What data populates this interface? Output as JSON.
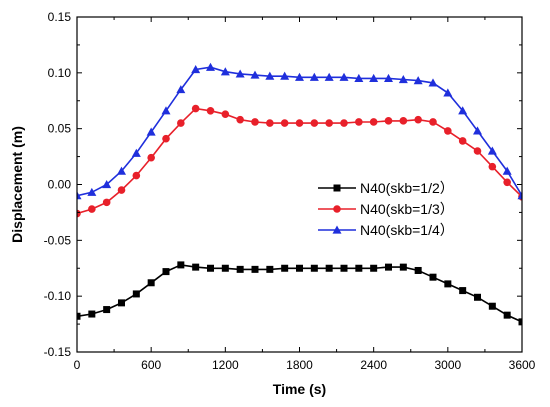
{
  "chart_data": {
    "type": "line",
    "title": "",
    "xlabel": "Time (s)",
    "ylabel": "Displacement (m)",
    "xlim": [
      0,
      3600
    ],
    "ylim": [
      -0.15,
      0.15
    ],
    "xticks": [
      0,
      600,
      1200,
      1800,
      2400,
      3000,
      3600
    ],
    "yticks": [
      -0.15,
      -0.1,
      -0.05,
      0.0,
      0.05,
      0.1,
      0.15
    ],
    "xtick_labels": [
      "0",
      "600",
      "1200",
      "1800",
      "2400",
      "3000",
      "3600"
    ],
    "ytick_labels": [
      "-0.15",
      "-0.10",
      "-0.05",
      "0.00",
      "0.05",
      "0.10",
      "0.15"
    ],
    "grid": false,
    "legend_position": "right-middle",
    "series": [
      {
        "name": "N40(skb=1/2）",
        "color": "#000000",
        "marker": "square",
        "x": [
          0,
          120,
          240,
          360,
          480,
          600,
          720,
          840,
          960,
          1080,
          1200,
          1320,
          1440,
          1560,
          1680,
          1800,
          1920,
          2040,
          2160,
          2280,
          2400,
          2520,
          2640,
          2760,
          2880,
          3000,
          3120,
          3240,
          3360,
          3480,
          3600
        ],
        "y": [
          -0.118,
          -0.116,
          -0.112,
          -0.106,
          -0.098,
          -0.088,
          -0.078,
          -0.072,
          -0.074,
          -0.075,
          -0.075,
          -0.076,
          -0.076,
          -0.076,
          -0.075,
          -0.075,
          -0.075,
          -0.075,
          -0.075,
          -0.075,
          -0.075,
          -0.074,
          -0.074,
          -0.077,
          -0.083,
          -0.089,
          -0.095,
          -0.101,
          -0.109,
          -0.117,
          -0.123
        ]
      },
      {
        "name": "N40(skb=1/3）",
        "color": "#e8202a",
        "marker": "circle",
        "x": [
          0,
          120,
          240,
          360,
          480,
          600,
          720,
          840,
          960,
          1080,
          1200,
          1320,
          1440,
          1560,
          1680,
          1800,
          1920,
          2040,
          2160,
          2280,
          2400,
          2520,
          2640,
          2760,
          2880,
          3000,
          3120,
          3240,
          3360,
          3480,
          3600
        ],
        "y": [
          -0.026,
          -0.022,
          -0.016,
          -0.005,
          0.008,
          0.024,
          0.041,
          0.055,
          0.068,
          0.066,
          0.063,
          0.058,
          0.056,
          0.055,
          0.055,
          0.055,
          0.055,
          0.055,
          0.055,
          0.056,
          0.056,
          0.057,
          0.057,
          0.058,
          0.056,
          0.048,
          0.039,
          0.03,
          0.016,
          0.002,
          -0.011
        ]
      },
      {
        "name": "N40(skb=1/4）",
        "color": "#1f2fdc",
        "marker": "triangle",
        "x": [
          0,
          120,
          240,
          360,
          480,
          600,
          720,
          840,
          960,
          1080,
          1200,
          1320,
          1440,
          1560,
          1680,
          1800,
          1920,
          2040,
          2160,
          2280,
          2400,
          2520,
          2640,
          2760,
          2880,
          3000,
          3120,
          3240,
          3360,
          3480,
          3600
        ],
        "y": [
          -0.01,
          -0.007,
          0.0,
          0.012,
          0.028,
          0.047,
          0.066,
          0.085,
          0.103,
          0.105,
          0.101,
          0.099,
          0.098,
          0.097,
          0.097,
          0.096,
          0.096,
          0.096,
          0.096,
          0.095,
          0.095,
          0.095,
          0.094,
          0.093,
          0.091,
          0.082,
          0.066,
          0.048,
          0.03,
          0.012,
          -0.01
        ]
      }
    ]
  }
}
